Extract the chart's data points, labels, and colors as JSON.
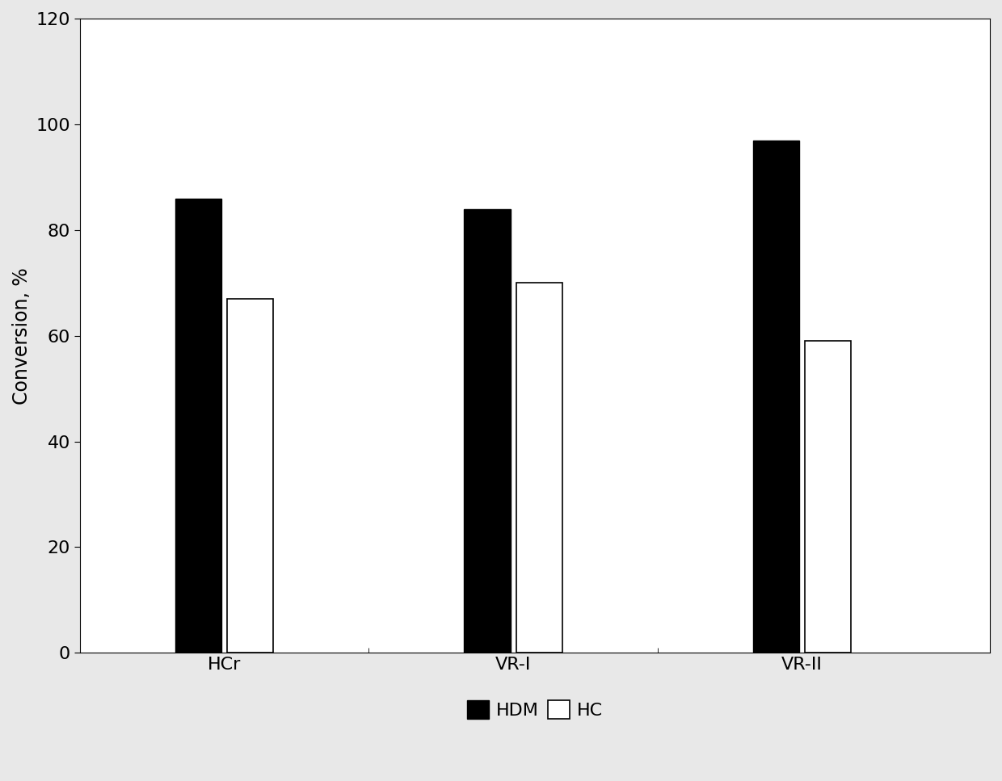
{
  "categories": [
    "HCr",
    "VR-I",
    "VR-II"
  ],
  "HDM_values": [
    86,
    84,
    97
  ],
  "HC_values": [
    67,
    70,
    59
  ],
  "HDM_color": "#000000",
  "HC_color": "#ffffff",
  "HC_edgecolor": "#000000",
  "ylabel": "Conversion, %",
  "ylim": [
    0,
    120
  ],
  "yticks": [
    0,
    20,
    40,
    60,
    80,
    100,
    120
  ],
  "bar_width": 0.32,
  "legend_labels": [
    "HDM",
    "HC"
  ],
  "tick_fontsize": 16,
  "label_fontsize": 17,
  "legend_fontsize": 16,
  "figure_facecolor": "#e8e8e8",
  "plot_facecolor": "#ffffff"
}
